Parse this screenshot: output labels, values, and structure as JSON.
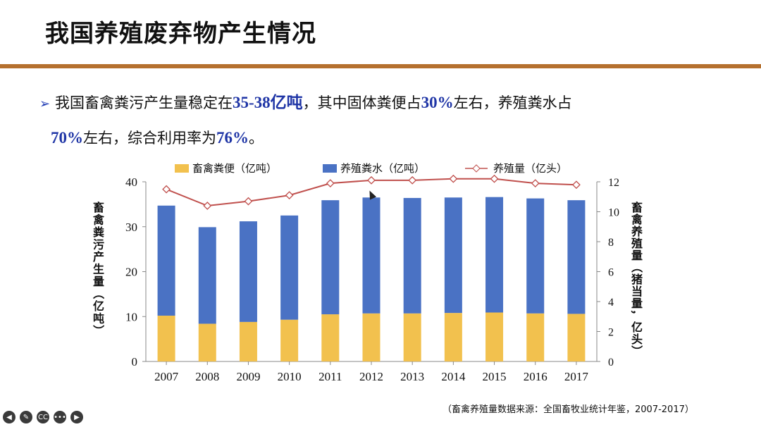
{
  "slide": {
    "title": "我国养殖废弃物产生情况",
    "bullet": {
      "arrow": "➢",
      "t1": "我国畜禽粪污产生量稳定在",
      "h1": "35-38亿吨",
      "t2": "，其中固体粪便占",
      "h2": "30%",
      "t3": "左右，养殖粪水占",
      "h3": "70%",
      "t4": "左右，综合利用率为",
      "h4": "76%",
      "t5": "。"
    },
    "source": "（畜禽养殖量数据来源：全国畜牧业统计年鉴，2007-2017）"
  },
  "toolbar": {
    "back_label": "◀",
    "edit_label": "✎",
    "cc_label": "CC",
    "more_label": "•••",
    "next_label": "▶"
  },
  "chart_data": {
    "type": "bar",
    "stacked": true,
    "categories": [
      "2007",
      "2008",
      "2009",
      "2010",
      "2011",
      "2012",
      "2013",
      "2014",
      "2015",
      "2016",
      "2017"
    ],
    "series": [
      {
        "name": "畜禽粪便（亿吨）",
        "type": "bar",
        "axis": "left",
        "color": "#f2c14e",
        "values": [
          10.2,
          8.4,
          8.8,
          9.3,
          10.5,
          10.7,
          10.7,
          10.8,
          10.9,
          10.7,
          10.6
        ]
      },
      {
        "name": "养殖粪水（亿吨）",
        "type": "bar",
        "axis": "left",
        "color": "#4a72c4",
        "values": [
          24.5,
          21.5,
          22.4,
          23.2,
          25.4,
          25.8,
          25.7,
          25.7,
          25.7,
          25.6,
          25.3
        ]
      },
      {
        "name": "养殖量（亿头）",
        "type": "line",
        "axis": "right",
        "color": "#c0504d",
        "values": [
          11.5,
          10.4,
          10.7,
          11.1,
          11.9,
          12.1,
          12.1,
          12.2,
          12.2,
          11.9,
          11.8
        ]
      }
    ],
    "ylabel": "畜禽粪污产生量（亿吨）",
    "y2label": "畜禽养殖量（猪当量，亿头）",
    "ylim": [
      0,
      40
    ],
    "yticks": [
      0,
      10,
      20,
      30,
      40
    ],
    "y2lim": [
      0,
      12
    ],
    "y2ticks": [
      0,
      2,
      4,
      6,
      8,
      10,
      12
    ],
    "legend_position": "top",
    "grid": false
  }
}
